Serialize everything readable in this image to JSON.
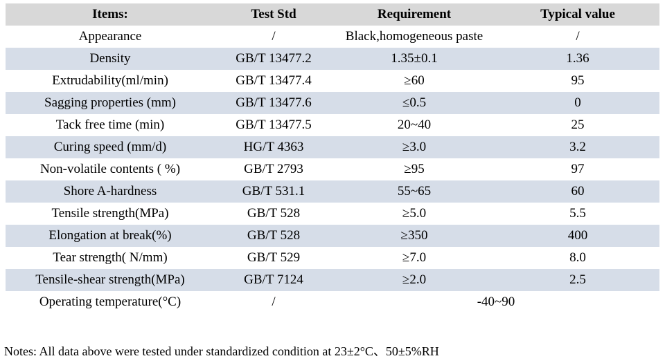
{
  "colors": {
    "header_bg": "#d8d8d8",
    "stripe_bg": "#d6dde8",
    "text": "#000000"
  },
  "table": {
    "columns": {
      "items": "Items:",
      "test_std": "Test Std",
      "requirement": "Requirement",
      "typical_value": "Typical value"
    },
    "rows": [
      {
        "item": "Appearance",
        "test_std": "/",
        "requirement": "Black,homogeneous paste",
        "typical": "/"
      },
      {
        "item": "Density",
        "test_std": "GB/T 13477.2",
        "requirement": "1.35±0.1",
        "typical": "1.36"
      },
      {
        "item": "Extrudability(ml/min)",
        "test_std": "GB/T 13477.4",
        "requirement": "≥60",
        "typical": "95"
      },
      {
        "item": "Sagging properties (mm)",
        "test_std": "GB/T 13477.6",
        "requirement": "≤0.5",
        "typical": "0"
      },
      {
        "item": "Tack free time (min)",
        "test_std": "GB/T 13477.5",
        "requirement": "20~40",
        "typical": "25"
      },
      {
        "item": "Curing speed (mm/d)",
        "test_std": "HG/T 4363",
        "requirement": "≥3.0",
        "typical": "3.2"
      },
      {
        "item": "Non-volatile contents ( %)",
        "test_std": "GB/T 2793",
        "requirement": "≥95",
        "typical": "97"
      },
      {
        "item": "Shore A-hardness",
        "test_std": "GB/T 531.1",
        "requirement": "55~65",
        "typical": "60"
      },
      {
        "item": "Tensile strength(MPa)",
        "test_std": "GB/T 528",
        "requirement": "≥5.0",
        "typical": "5.5"
      },
      {
        "item": "Elongation at break(%)",
        "test_std": "GB/T 528",
        "requirement": "≥350",
        "typical": "400"
      },
      {
        "item": "Tear strength( N/mm)",
        "test_std": "GB/T 529",
        "requirement": "≥7.0",
        "typical": "8.0"
      },
      {
        "item": "Tensile-shear strength(MPa)",
        "test_std": "GB/T 7124",
        "requirement": "≥2.0",
        "typical": "2.5"
      },
      {
        "item": "Operating temperature(°C)",
        "test_std": "/",
        "value_span": "-40~90"
      }
    ]
  },
  "notes": "Notes: All data above were tested under standardized condition at 23±2°C、50±5%RH"
}
